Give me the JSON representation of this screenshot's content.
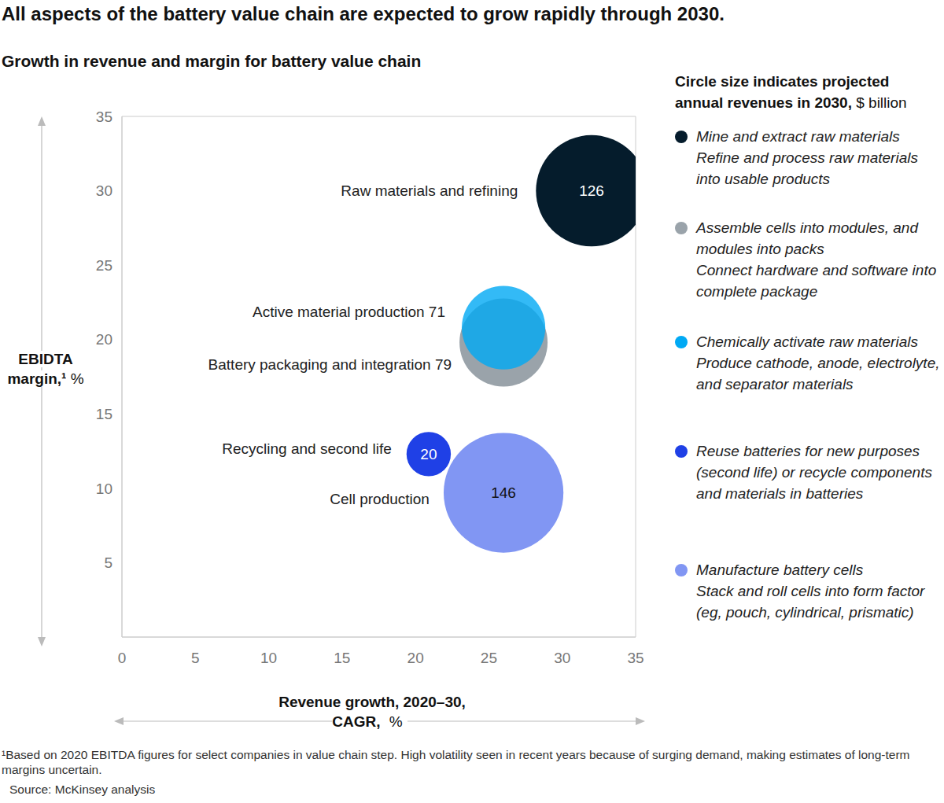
{
  "chart_data": {
    "type": "scatter",
    "title": "All aspects of the battery value chain are expected to grow rapidly through 2030.",
    "subtitle": "Growth in revenue and margin for battery value chain",
    "x_label": "Revenue growth, 2020–30, CAGR, %",
    "y_label": "EBIDTA margin,¹ %",
    "xlim": [
      0,
      35
    ],
    "xticks": [
      0,
      5,
      10,
      15,
      20,
      25,
      30,
      35
    ],
    "ylim": [
      0,
      35
    ],
    "yticks": [
      5,
      10,
      15,
      20,
      25,
      30,
      35
    ],
    "grid": false,
    "size_title": "Circle size indicates projected annual revenues in 2030,",
    "size_unit": "$ billion",
    "series": [
      {
        "name": "Raw materials and refining",
        "color": "#051c2c",
        "x": [
          32.0
        ],
        "y": [
          30.0
        ],
        "sizes": [
          126
        ],
        "data_labels": true,
        "description": [
          "Mine and extract raw materials",
          "Refine and process raw materials into usable products"
        ]
      },
      {
        "name": "Battery packaging and integration 79",
        "color": "#9aa3aa",
        "x": [
          26.0
        ],
        "y": [
          19.8
        ],
        "sizes": [
          79
        ],
        "data_labels": false,
        "description": [
          "Assemble cells into modules, and modules into packs",
          "Connect hardware and software into complete package"
        ]
      },
      {
        "name": "Active material production 71",
        "color": "#00a9f4",
        "x": [
          26.0
        ],
        "y": [
          20.8
        ],
        "sizes": [
          71
        ],
        "data_labels": false,
        "description": [
          "Chemically activate raw materials",
          "Produce cathode, anode, electrolyte, and separator materials"
        ]
      },
      {
        "name": "Recycling and second life",
        "color": "#1f40e6",
        "x": [
          20.9
        ],
        "y": [
          12.3
        ],
        "sizes": [
          20
        ],
        "data_labels": true,
        "description": [
          "Reuse batteries for new purposes (second life) or recycle components and materials in batteries"
        ]
      },
      {
        "name": "Cell production",
        "color": "#8196f3",
        "x": [
          26.0
        ],
        "y": [
          9.7
        ],
        "sizes": [
          146
        ],
        "data_labels": true,
        "description": [
          "Manufacture battery cells",
          "Stack and roll cells into form factor (eg, pouch, cylindrical, prismatic)"
        ]
      }
    ],
    "footnote": "¹Based on 2020 EBITDA figures for select companies in value chain step. High volatility seen in recent years because of surging demand, making estimates of long-term margins uncertain.",
    "source": "Source: McKinsey analysis"
  }
}
